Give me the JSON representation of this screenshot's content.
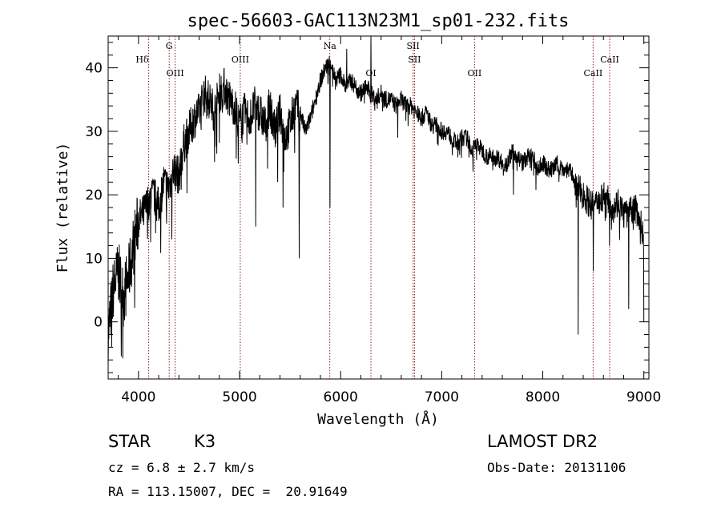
{
  "chart_data": {
    "type": "line",
    "title": "spec-56603-GAC113N23M1_sp01-232.fits",
    "xlabel": "Wavelength (Å)",
    "ylabel": "Flux (relative)",
    "xlim": [
      3700,
      9050
    ],
    "ylim": [
      -9,
      45
    ],
    "xticks": [
      "4000",
      "5000",
      "6000",
      "7000",
      "8000",
      "9000"
    ],
    "yticks": [
      "0",
      "10",
      "20",
      "30",
      "40"
    ],
    "grid": false,
    "line_color": "#000000",
    "marker_color": "#8b1a1a",
    "series": [
      {
        "x": [
          3700,
          3750,
          3800,
          3850,
          3900,
          3950,
          4000,
          4050,
          4100,
          4150,
          4200,
          4250,
          4300,
          4350,
          4400,
          4450,
          4500,
          4550,
          4600,
          4650,
          4700,
          4750,
          4800,
          4850,
          4900,
          4950,
          5000,
          5050,
          5100,
          5150,
          5200,
          5250,
          5300,
          5350,
          5400,
          5450,
          5500,
          5550,
          5600,
          5650,
          5700,
          5750,
          5800,
          5850,
          5900,
          5950,
          6000,
          6050,
          6100,
          6150,
          6200,
          6250,
          6300,
          6350,
          6400,
          6450,
          6500,
          6550,
          6600,
          6650,
          6700,
          6750,
          6800,
          6850,
          6900,
          6950,
          7000,
          7050,
          7100,
          7150,
          7200,
          7250,
          7300,
          7350,
          7400,
          7450,
          7500,
          7550,
          7600,
          7650,
          7700,
          7750,
          7800,
          7850,
          7900,
          7950,
          8000,
          8050,
          8100,
          8150,
          8200,
          8250,
          8300,
          8350,
          8400,
          8450,
          8500,
          8550,
          8600,
          8650,
          8700,
          8750,
          8800,
          8850,
          8900,
          8950,
          9000
        ],
        "y": [
          -2,
          5,
          8,
          4,
          7,
          12,
          16,
          17,
          19,
          20,
          18,
          22,
          21,
          24,
          23,
          28,
          30,
          32,
          33,
          36,
          35,
          33,
          36,
          37,
          35,
          34,
          31,
          33,
          32,
          34,
          33,
          31,
          34,
          30,
          33,
          29,
          31,
          34,
          33,
          30,
          32,
          35,
          38,
          40,
          41,
          38,
          39,
          37,
          38,
          37,
          36,
          37,
          36,
          35,
          36,
          35,
          35,
          34,
          35,
          34,
          34,
          33,
          32,
          33,
          31,
          31,
          30,
          30,
          29,
          28,
          29,
          29,
          27,
          28,
          27,
          26,
          26,
          26,
          25,
          25,
          27,
          26,
          25,
          26,
          26,
          24,
          25,
          24,
          24,
          25,
          24,
          24,
          23,
          21,
          20,
          19,
          18,
          19,
          20,
          19,
          18,
          19,
          17,
          17,
          18,
          17,
          13
        ],
        "features": [
          {
            "x": 3735,
            "y": -4
          },
          {
            "x": 4330,
            "y": 13
          },
          {
            "x": 5160,
            "y": 15
          },
          {
            "x": 5430,
            "y": 18
          },
          {
            "x": 5590,
            "y": 10
          },
          {
            "x": 5895,
            "y": 18
          },
          {
            "x": 6060,
            "y": 43
          },
          {
            "x": 6300,
            "y": 45
          },
          {
            "x": 6565,
            "y": 29
          },
          {
            "x": 7610,
            "y": 23
          },
          {
            "x": 7710,
            "y": 20
          },
          {
            "x": 8330,
            "y": 18
          },
          {
            "x": 8350,
            "y": -2
          },
          {
            "x": 8500,
            "y": 8
          },
          {
            "x": 8545,
            "y": 20
          },
          {
            "x": 8660,
            "y": 12
          },
          {
            "x": 8850,
            "y": 2
          },
          {
            "x": 9000,
            "y": 0
          }
        ]
      }
    ],
    "lines": [
      {
        "x": 4101,
        "label": "Hδ",
        "row": 0
      },
      {
        "x": 4304,
        "label": "G",
        "row": -1
      },
      {
        "x": 4363,
        "label": "OIII",
        "row": 1
      },
      {
        "x": 5007,
        "label": "OIII",
        "row": 0
      },
      {
        "x": 5893,
        "label": "Na",
        "row": -1
      },
      {
        "x": 6300,
        "label": "OI",
        "row": 1
      },
      {
        "x": 6717,
        "label": "SII",
        "row": -1
      },
      {
        "x": 6731,
        "label": "SII",
        "row": 0
      },
      {
        "x": 7325,
        "label": "OII",
        "row": 1
      },
      {
        "x": 8498,
        "label": "CaII",
        "row": 1
      },
      {
        "x": 8662,
        "label": "CaII",
        "row": 0
      }
    ]
  },
  "info": {
    "class": "STAR",
    "subclass": "K3",
    "survey": "LAMOST DR2",
    "cz": "cz = 6.8 ± 2.7 km/s",
    "obs_date": "Obs-Date: 20131106",
    "radec": "RA = 113.15007, DEC =  20.91649"
  }
}
